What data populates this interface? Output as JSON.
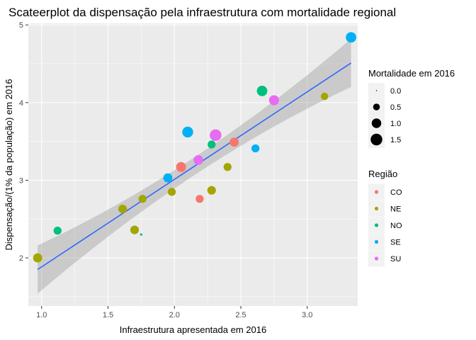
{
  "chart_data": {
    "type": "scatter",
    "title": "Scateerplot da dispensação pela infraestrutura com mortalidade regional",
    "xlabel": "Infraestrutura apresentada em 2016",
    "ylabel": "Dispensação/(1% da população) em 2016",
    "xlim": [
      0.9,
      3.38
    ],
    "ylim": [
      1.38,
      5.02
    ],
    "x_ticks": [
      1.0,
      1.5,
      2.0,
      2.5,
      3.0
    ],
    "x_tick_labels": [
      "1.0",
      "1.5",
      "2.0",
      "2.5",
      "3.0"
    ],
    "y_ticks": [
      2,
      3,
      4,
      5
    ],
    "y_tick_labels": [
      "2",
      "3",
      "4",
      "5"
    ],
    "grid": true,
    "legend_position": "right",
    "size_legend": {
      "title": "Mortalidade em 2016",
      "values": [
        0.0,
        0.5,
        1.0,
        1.5
      ],
      "labels": [
        "0.0",
        "0.5",
        "1.0",
        "1.5"
      ]
    },
    "color_legend": {
      "title": "Região",
      "categories": [
        "CO",
        "NE",
        "NO",
        "SE",
        "SU"
      ],
      "labels": [
        "CO",
        "NE",
        "NO",
        "SE",
        "SU"
      ],
      "colors": [
        "#F8766D",
        "#A3A500",
        "#00BF7D",
        "#00B0F6",
        "#E76BF3"
      ]
    },
    "points": [
      {
        "x": 0.97,
        "y": 2.0,
        "region": "NE",
        "mortality": 0.9
      },
      {
        "x": 1.12,
        "y": 2.35,
        "region": "NO",
        "mortality": 0.7
      },
      {
        "x": 1.61,
        "y": 2.63,
        "region": "NE",
        "mortality": 0.8
      },
      {
        "x": 1.7,
        "y": 2.36,
        "region": "NE",
        "mortality": 0.8
      },
      {
        "x": 1.75,
        "y": 2.3,
        "region": "NO",
        "mortality": 0.05
      },
      {
        "x": 1.76,
        "y": 2.76,
        "region": "NE",
        "mortality": 0.7
      },
      {
        "x": 1.95,
        "y": 3.03,
        "region": "SE",
        "mortality": 0.9
      },
      {
        "x": 1.98,
        "y": 2.85,
        "region": "NE",
        "mortality": 0.7
      },
      {
        "x": 2.05,
        "y": 3.17,
        "region": "CO",
        "mortality": 1.1
      },
      {
        "x": 2.1,
        "y": 3.62,
        "region": "SE",
        "mortality": 1.3
      },
      {
        "x": 2.18,
        "y": 3.26,
        "region": "SU",
        "mortality": 1.0
      },
      {
        "x": 2.19,
        "y": 2.76,
        "region": "CO",
        "mortality": 0.7
      },
      {
        "x": 2.28,
        "y": 2.87,
        "region": "NE",
        "mortality": 0.8
      },
      {
        "x": 2.28,
        "y": 3.46,
        "region": "NO",
        "mortality": 0.7
      },
      {
        "x": 2.31,
        "y": 3.58,
        "region": "SU",
        "mortality": 1.5
      },
      {
        "x": 2.4,
        "y": 3.17,
        "region": "NE",
        "mortality": 0.7
      },
      {
        "x": 2.45,
        "y": 3.49,
        "region": "CO",
        "mortality": 0.9
      },
      {
        "x": 2.61,
        "y": 3.41,
        "region": "SE",
        "mortality": 0.7
      },
      {
        "x": 2.66,
        "y": 4.15,
        "region": "NO",
        "mortality": 1.2
      },
      {
        "x": 2.75,
        "y": 4.03,
        "region": "SU",
        "mortality": 1.1
      },
      {
        "x": 3.13,
        "y": 4.08,
        "region": "NE",
        "mortality": 0.6
      },
      {
        "x": 3.33,
        "y": 4.84,
        "region": "SE",
        "mortality": 1.2
      }
    ],
    "trend": {
      "method": "linear",
      "x_range": [
        0.97,
        3.33
      ],
      "y_start": 1.85,
      "y_end": 4.51,
      "ci_start": [
        1.54,
        2.16
      ],
      "ci_mid": [
        3.11,
        3.34
      ],
      "x_mid": 2.13,
      "ci_end": [
        4.2,
        4.82
      ],
      "line_color": "#3366FF",
      "ribbon_color": "#999999"
    }
  }
}
